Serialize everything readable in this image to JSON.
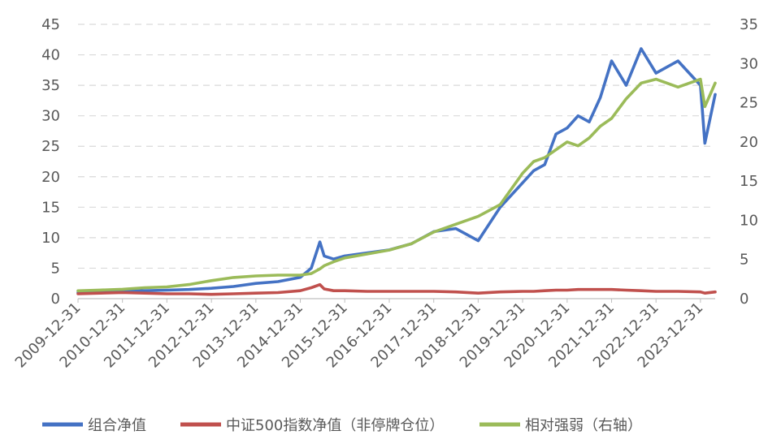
{
  "chart_data": {
    "type": "line",
    "x": [
      "2009-12-31",
      "2010-06-30",
      "2010-12-31",
      "2011-06-30",
      "2011-12-31",
      "2012-06-30",
      "2012-12-31",
      "2013-06-30",
      "2013-12-31",
      "2014-06-30",
      "2014-12-31",
      "2015-03-31",
      "2015-06-10",
      "2015-07-15",
      "2015-09-30",
      "2015-12-31",
      "2016-06-30",
      "2016-12-31",
      "2017-06-30",
      "2017-12-31",
      "2018-06-30",
      "2018-12-31",
      "2019-06-30",
      "2019-12-31",
      "2020-03-31",
      "2020-06-30",
      "2020-09-30",
      "2020-12-31",
      "2021-03-31",
      "2021-06-30",
      "2021-09-30",
      "2021-12-31",
      "2022-04-30",
      "2022-08-31",
      "2022-12-31",
      "2023-06-30",
      "2023-12-31",
      "2024-02-05",
      "2024-04-30"
    ],
    "x_tick_labels": [
      "2009-12-31",
      "2010-12-31",
      "2011-12-31",
      "2012-12-31",
      "2013-12-31",
      "2014-12-31",
      "2015-12-31",
      "2016-12-31",
      "2017-12-31",
      "2018-12-31",
      "2019-12-31",
      "2020-12-31",
      "2021-12-31",
      "2022-12-31",
      "2023-12-31"
    ],
    "y_left": {
      "ticks": [
        0,
        5,
        10,
        15,
        20,
        25,
        30,
        35,
        40,
        45
      ],
      "ylim": [
        0,
        45
      ]
    },
    "y_right": {
      "ticks": [
        0,
        5,
        10,
        15,
        20,
        25,
        30,
        35
      ],
      "ylim": [
        0,
        35
      ]
    },
    "grid": true,
    "legend_position": "bottom",
    "series": [
      {
        "name": "组合净值",
        "axis": "left",
        "color": "#4472C4",
        "values": [
          1.0,
          1.1,
          1.2,
          1.3,
          1.4,
          1.5,
          1.7,
          2.0,
          2.5,
          2.8,
          3.5,
          5.0,
          9.3,
          7.0,
          6.5,
          7.0,
          7.5,
          8.0,
          9.0,
          11.0,
          11.5,
          9.5,
          15.0,
          19.0,
          21.0,
          22.0,
          27.0,
          28.0,
          30.0,
          29.0,
          33.0,
          39.0,
          35.0,
          41.0,
          37.0,
          39.0,
          35.0,
          25.5,
          33.5
        ]
      },
      {
        "name": "中证500指数净值（非停牌仓位）",
        "axis": "left",
        "color": "#C0504D",
        "values": [
          0.8,
          0.9,
          1.0,
          0.9,
          0.8,
          0.8,
          0.7,
          0.8,
          0.9,
          1.0,
          1.3,
          1.8,
          2.3,
          1.6,
          1.3,
          1.3,
          1.2,
          1.2,
          1.2,
          1.2,
          1.1,
          0.9,
          1.1,
          1.2,
          1.2,
          1.3,
          1.4,
          1.4,
          1.5,
          1.5,
          1.5,
          1.5,
          1.4,
          1.3,
          1.2,
          1.2,
          1.1,
          0.9,
          1.1
        ]
      },
      {
        "name": "相对强弱（右轴）",
        "axis": "right",
        "color": "#9BBB59",
        "values": [
          1.0,
          1.1,
          1.2,
          1.4,
          1.5,
          1.8,
          2.3,
          2.7,
          2.9,
          3.0,
          3.0,
          3.2,
          3.8,
          4.2,
          4.7,
          5.2,
          5.7,
          6.2,
          7.0,
          8.5,
          9.5,
          10.5,
          12.0,
          16.0,
          17.5,
          18.0,
          19.0,
          20.0,
          19.5,
          20.5,
          22.0,
          23.0,
          25.5,
          27.5,
          28.0,
          27.0,
          28.0,
          24.5,
          27.5
        ]
      }
    ]
  }
}
